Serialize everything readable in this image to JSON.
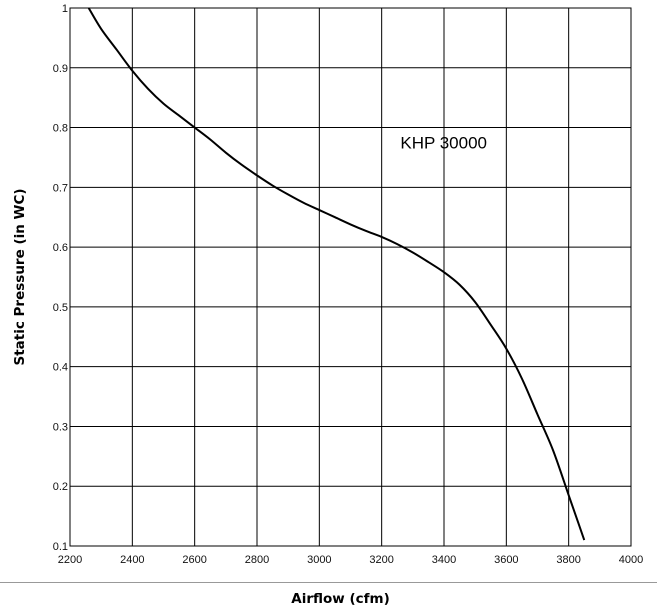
{
  "chart_data": {
    "type": "line",
    "xlabel": "Airflow (cfm)",
    "ylabel": "Static Pressure (in WC)",
    "xlim": [
      2200,
      4000
    ],
    "ylim": [
      0.1,
      1
    ],
    "x_ticks": [
      "2200",
      "2400",
      "2600",
      "2800",
      "3000",
      "3200",
      "3400",
      "3600",
      "3800",
      "4000"
    ],
    "y_ticks": [
      "0.1",
      "0.2",
      "0.3",
      "0.4",
      "0.5",
      "0.6",
      "0.7",
      "0.8",
      "0.9",
      "1"
    ],
    "grid": true,
    "annotations": [
      "KHP 30000"
    ],
    "series": [
      {
        "name": "KHP 30000",
        "x": [
          2260,
          2300,
          2350,
          2400,
          2450,
          2500,
          2550,
          2600,
          2650,
          2700,
          2750,
          2800,
          2850,
          2900,
          2950,
          3000,
          3050,
          3100,
          3150,
          3200,
          3250,
          3300,
          3350,
          3400,
          3450,
          3500,
          3550,
          3600,
          3650,
          3700,
          3750,
          3800,
          3830,
          3850
        ],
        "y": [
          1.0,
          0.965,
          0.93,
          0.895,
          0.865,
          0.84,
          0.82,
          0.8,
          0.78,
          0.758,
          0.738,
          0.72,
          0.703,
          0.688,
          0.674,
          0.662,
          0.65,
          0.638,
          0.627,
          0.617,
          0.605,
          0.591,
          0.575,
          0.558,
          0.537,
          0.508,
          0.47,
          0.43,
          0.38,
          0.32,
          0.26,
          0.185,
          0.14,
          0.11
        ],
        "color": "#000000"
      }
    ]
  }
}
